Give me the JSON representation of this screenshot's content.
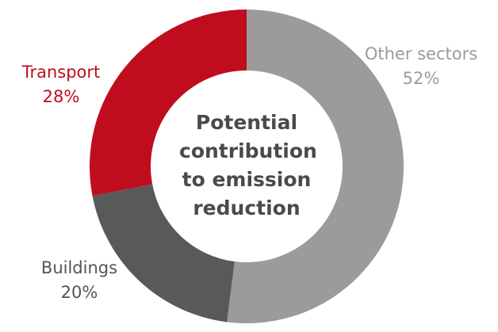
{
  "chart_data": {
    "type": "donut",
    "title": "Potential contribution to emission reduction",
    "categories": [
      "Other sectors",
      "Buildings",
      "Transport"
    ],
    "values": [
      52,
      20,
      28
    ],
    "value_labels": [
      "52%",
      "20%",
      "28%"
    ],
    "colors": [
      "#9b9b9b",
      "#595959",
      "#c00d1e"
    ]
  }
}
